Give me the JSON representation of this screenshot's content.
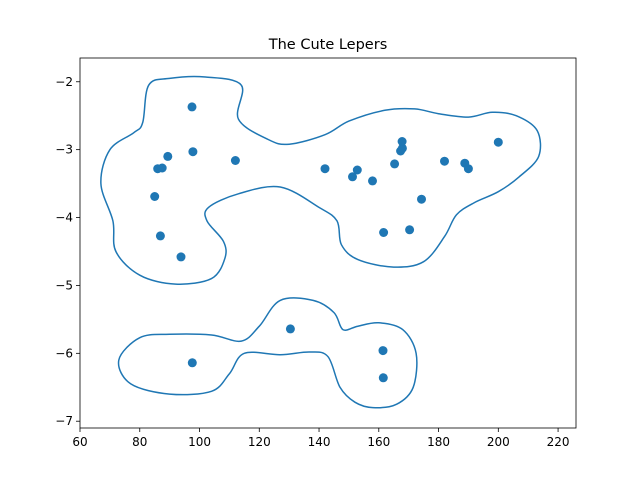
{
  "chart_data": {
    "type": "scatter",
    "title": "The Cute Lepers",
    "xlabel": "",
    "ylabel": "",
    "xlim": [
      60,
      226
    ],
    "ylim": [
      -7.1,
      -1.65
    ],
    "xticks": [
      60,
      80,
      100,
      120,
      140,
      160,
      180,
      200,
      220
    ],
    "yticks": [
      -2,
      -3,
      -4,
      -5,
      -6,
      -7
    ],
    "xtick_labels": [
      "60",
      "80",
      "100",
      "120",
      "140",
      "160",
      "180",
      "200",
      "220"
    ],
    "ytick_labels": [
      "−2",
      "−3",
      "−4",
      "−5",
      "−6",
      "−7"
    ],
    "grid": false,
    "color": "#1f77b4",
    "points": [
      {
        "x": 97.5,
        "y": -2.37
      },
      {
        "x": 97.8,
        "y": -3.03
      },
      {
        "x": 89.4,
        "y": -3.1
      },
      {
        "x": 86.0,
        "y": -3.28
      },
      {
        "x": 87.5,
        "y": -3.27
      },
      {
        "x": 85.0,
        "y": -3.69
      },
      {
        "x": 86.9,
        "y": -4.27
      },
      {
        "x": 93.8,
        "y": -4.58
      },
      {
        "x": 112.0,
        "y": -3.16
      },
      {
        "x": 142.0,
        "y": -3.28
      },
      {
        "x": 151.2,
        "y": -3.4
      },
      {
        "x": 152.8,
        "y": -3.3
      },
      {
        "x": 157.9,
        "y": -3.46
      },
      {
        "x": 165.3,
        "y": -3.21
      },
      {
        "x": 167.3,
        "y": -3.02
      },
      {
        "x": 167.9,
        "y": -2.98
      },
      {
        "x": 167.8,
        "y": -2.88
      },
      {
        "x": 182.0,
        "y": -3.17
      },
      {
        "x": 188.8,
        "y": -3.2
      },
      {
        "x": 190.0,
        "y": -3.28
      },
      {
        "x": 200.0,
        "y": -2.89
      },
      {
        "x": 174.3,
        "y": -3.73
      },
      {
        "x": 161.6,
        "y": -4.22
      },
      {
        "x": 170.3,
        "y": -4.18
      },
      {
        "x": 130.4,
        "y": -5.64
      },
      {
        "x": 97.6,
        "y": -6.14
      },
      {
        "x": 161.4,
        "y": -5.96
      },
      {
        "x": 161.5,
        "y": -6.36
      }
    ],
    "contours": [
      [
        [
          102,
          -1.93
        ],
        [
          114,
          -2.05
        ],
        [
          113,
          -2.55
        ],
        [
          123,
          -2.85
        ],
        [
          130,
          -2.92
        ],
        [
          142,
          -2.78
        ],
        [
          150,
          -2.58
        ],
        [
          162,
          -2.42
        ],
        [
          172,
          -2.4
        ],
        [
          180,
          -2.47
        ],
        [
          190,
          -2.52
        ],
        [
          198,
          -2.45
        ],
        [
          206,
          -2.5
        ],
        [
          213,
          -2.72
        ],
        [
          213.5,
          -3.1
        ],
        [
          207,
          -3.4
        ],
        [
          200,
          -3.62
        ],
        [
          192,
          -3.78
        ],
        [
          186,
          -3.96
        ],
        [
          182,
          -4.28
        ],
        [
          175,
          -4.65
        ],
        [
          165,
          -4.73
        ],
        [
          153,
          -4.62
        ],
        [
          147.5,
          -4.4
        ],
        [
          146,
          -4.05
        ],
        [
          140,
          -3.85
        ],
        [
          127,
          -3.55
        ],
        [
          113,
          -3.65
        ],
        [
          103,
          -3.85
        ],
        [
          102.5,
          -4.05
        ],
        [
          108,
          -4.35
        ],
        [
          108.5,
          -4.6
        ],
        [
          104,
          -4.9
        ],
        [
          92,
          -4.98
        ],
        [
          80,
          -4.85
        ],
        [
          72,
          -4.5
        ],
        [
          71,
          -4.05
        ],
        [
          67,
          -3.5
        ],
        [
          70,
          -3.0
        ],
        [
          78,
          -2.75
        ],
        [
          81,
          -2.6
        ],
        [
          83,
          -2.05
        ],
        [
          90,
          -1.95
        ],
        [
          102,
          -1.93
        ]
      ],
      [
        [
          127,
          -5.22
        ],
        [
          138,
          -5.22
        ],
        [
          145,
          -5.4
        ],
        [
          148,
          -5.65
        ],
        [
          153,
          -5.6
        ],
        [
          160,
          -5.55
        ],
        [
          168,
          -5.65
        ],
        [
          172.5,
          -6.0
        ],
        [
          171.5,
          -6.5
        ],
        [
          166,
          -6.75
        ],
        [
          158,
          -6.8
        ],
        [
          152,
          -6.72
        ],
        [
          147,
          -6.5
        ],
        [
          143,
          -6.05
        ],
        [
          137,
          -5.98
        ],
        [
          127,
          -6.02
        ],
        [
          115,
          -6.0
        ],
        [
          110,
          -6.3
        ],
        [
          104,
          -6.56
        ],
        [
          90,
          -6.6
        ],
        [
          77,
          -6.45
        ],
        [
          73,
          -6.1
        ],
        [
          80,
          -5.77
        ],
        [
          90,
          -5.72
        ],
        [
          104,
          -5.73
        ],
        [
          114,
          -5.82
        ],
        [
          120,
          -5.6
        ],
        [
          127,
          -5.22
        ]
      ]
    ]
  }
}
